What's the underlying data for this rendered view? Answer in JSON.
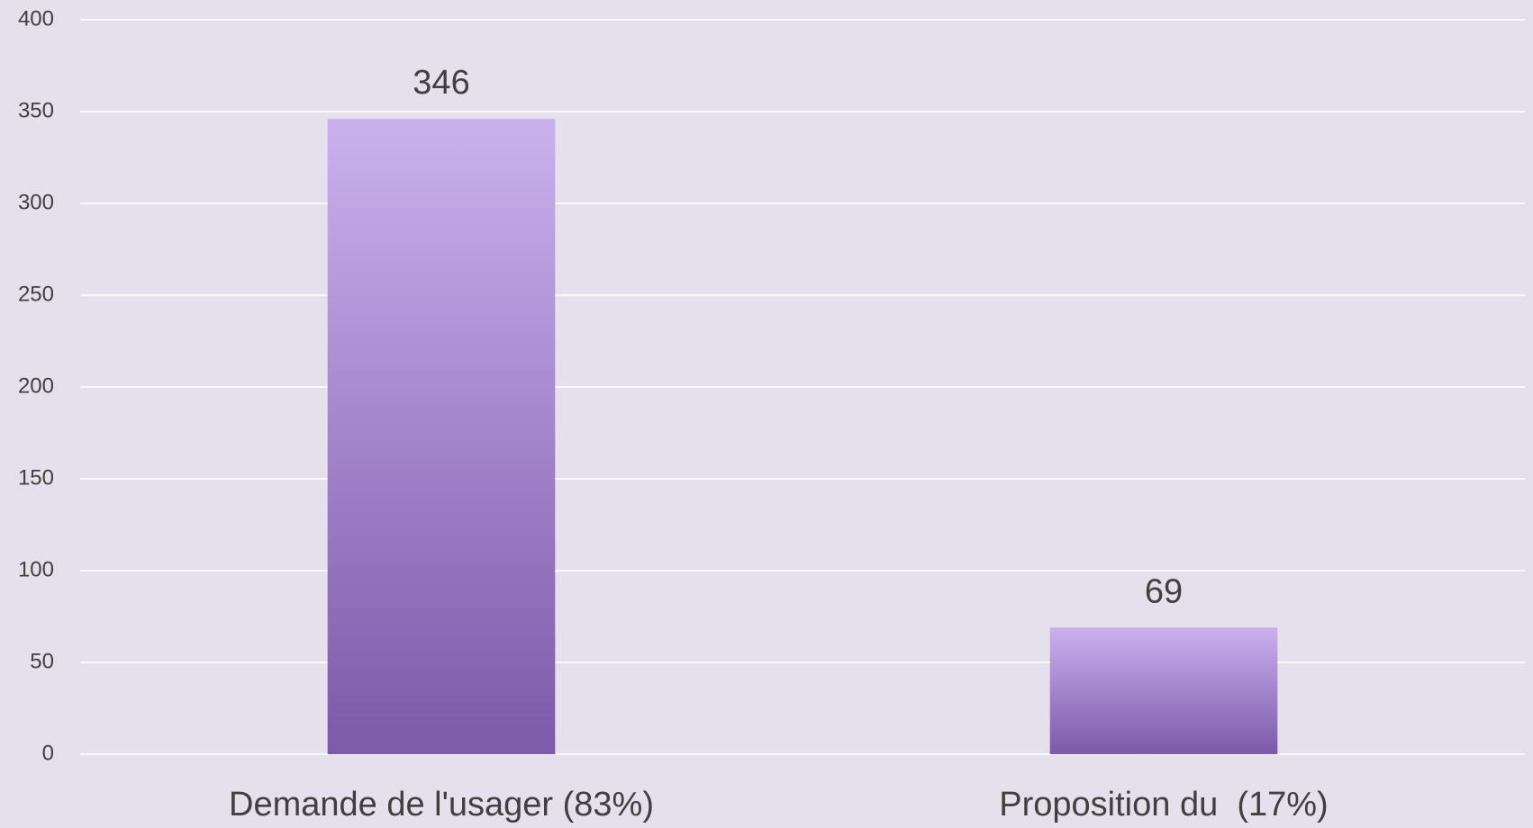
{
  "chart_data": {
    "type": "bar",
    "categories": [
      "Demande de l'usager (83%)",
      "Proposition du  (17%)"
    ],
    "values": [
      346,
      69
    ],
    "gradient": [
      "#c9b1ee",
      "#7d59a9"
    ],
    "ylim": [
      0,
      400
    ],
    "yticks": [
      0,
      50,
      100,
      150,
      200,
      250,
      300,
      350,
      400
    ],
    "grid": true
  }
}
